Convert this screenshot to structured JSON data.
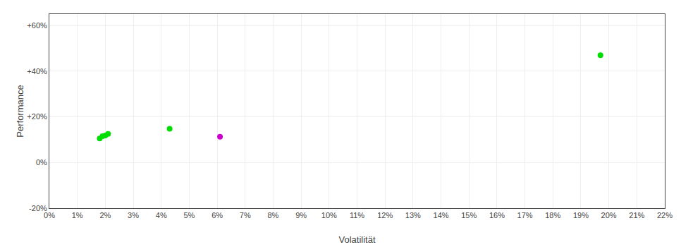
{
  "chart_data": {
    "type": "scatter",
    "xlabel": "Volatilität",
    "ylabel": "Performance",
    "x": [
      0.019,
      0.021,
      0.02,
      0.018,
      0.043,
      0.061,
      0.197
    ],
    "values": [
      0.115,
      0.125,
      0.118,
      0.105,
      0.148,
      0.113,
      0.47
    ],
    "colors": [
      "#00dd00",
      "#00dd00",
      "#00dd00",
      "#00dd00",
      "#00dd00",
      "#cc00cc",
      "#00dd00"
    ],
    "xlim": [
      0.0,
      0.22
    ],
    "ylim": [
      -0.2,
      0.65
    ],
    "xticks": [
      {
        "value": 0.0,
        "label": "0%"
      },
      {
        "value": 0.01,
        "label": "1%"
      },
      {
        "value": 0.02,
        "label": "2%"
      },
      {
        "value": 0.03,
        "label": "3%"
      },
      {
        "value": 0.04,
        "label": "4%"
      },
      {
        "value": 0.05,
        "label": "5%"
      },
      {
        "value": 0.06,
        "label": "6%"
      },
      {
        "value": 0.07,
        "label": "7%"
      },
      {
        "value": 0.08,
        "label": "8%"
      },
      {
        "value": 0.09,
        "label": "9%"
      },
      {
        "value": 0.1,
        "label": "10%"
      },
      {
        "value": 0.11,
        "label": "11%"
      },
      {
        "value": 0.12,
        "label": "12%"
      },
      {
        "value": 0.13,
        "label": "13%"
      },
      {
        "value": 0.14,
        "label": "14%"
      },
      {
        "value": 0.15,
        "label": "15%"
      },
      {
        "value": 0.16,
        "label": "16%"
      },
      {
        "value": 0.17,
        "label": "17%"
      },
      {
        "value": 0.18,
        "label": "18%"
      },
      {
        "value": 0.19,
        "label": "19%"
      },
      {
        "value": 0.2,
        "label": "20%"
      },
      {
        "value": 0.21,
        "label": "21%"
      },
      {
        "value": 0.22,
        "label": "22%"
      }
    ],
    "yticks": [
      {
        "value": -0.2,
        "label": "-20%"
      },
      {
        "value": 0.0,
        "label": "0%"
      },
      {
        "value": 0.2,
        "label": "+20%"
      },
      {
        "value": 0.4,
        "label": "+40%"
      },
      {
        "value": 0.6,
        "label": "+60%"
      }
    ],
    "grid": true
  }
}
